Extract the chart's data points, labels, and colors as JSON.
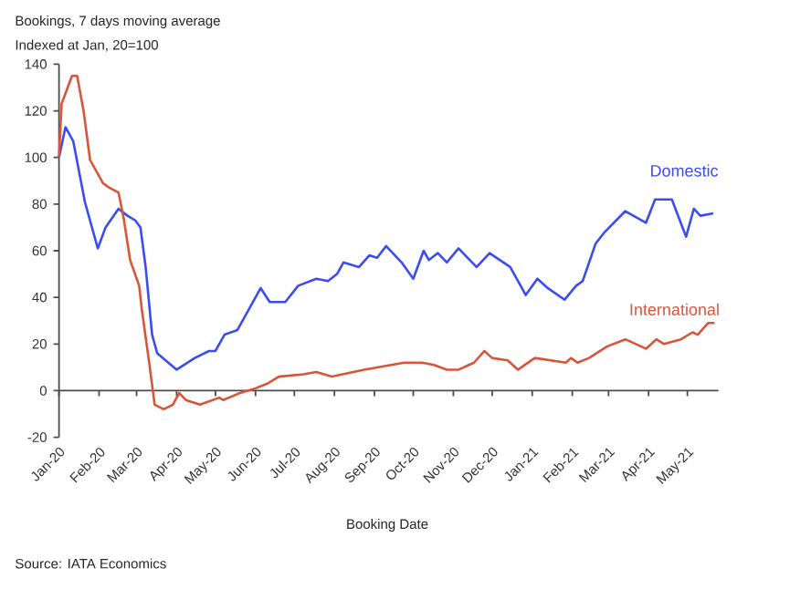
{
  "chart_data": {
    "type": "line",
    "title": "Bookings, 7 days moving average",
    "subtitle": "Indexed at Jan, 20=100",
    "xlabel": "Booking Date",
    "annotations": [
      "Source: IATA Economics"
    ],
    "x": [
      "2020-01-01",
      "2020-01-06",
      "2020-01-12",
      "2020-01-21",
      "2020-01-31",
      "2020-02-06",
      "2020-02-16",
      "2020-02-23",
      "2020-02-29",
      "2020-03-04",
      "2020-03-08",
      "2020-03-13",
      "2020-03-17",
      "2020-04-01",
      "2020-04-15",
      "2020-04-26",
      "2020-05-01",
      "2020-05-08",
      "2020-05-18",
      "2020-05-27",
      "2020-06-05",
      "2020-06-12",
      "2020-06-24",
      "2020-07-04",
      "2020-07-18",
      "2020-07-27",
      "2020-08-03",
      "2020-08-08",
      "2020-08-20",
      "2020-08-28",
      "2020-09-03",
      "2020-09-10",
      "2020-09-22",
      "2020-10-01",
      "2020-10-09",
      "2020-10-13",
      "2020-10-20",
      "2020-10-27",
      "2020-11-05",
      "2020-11-19",
      "2020-11-29",
      "2020-12-15",
      "2020-12-27",
      "2021-01-05",
      "2021-01-13",
      "2021-01-26",
      "2021-02-04",
      "2021-02-09",
      "2021-02-19",
      "2021-02-26",
      "2021-03-14",
      "2021-03-30",
      "2021-04-06",
      "2021-04-19",
      "2021-04-30",
      "2021-05-06",
      "2021-05-11",
      "2021-05-21"
    ],
    "series": [
      {
        "name": "Domestic",
        "color": "#3b4cf0",
        "values": [
          100,
          113,
          107,
          81,
          61,
          70,
          78,
          75,
          73,
          70,
          53,
          24,
          16,
          9,
          14,
          17,
          17,
          24,
          26,
          35,
          44,
          38,
          38,
          45,
          48,
          47,
          50,
          55,
          53,
          58,
          57,
          62,
          55,
          48,
          60,
          56,
          59,
          55,
          61,
          53,
          59,
          53,
          41,
          48,
          44,
          39,
          45,
          47,
          63,
          68,
          77,
          72,
          82,
          82,
          66,
          78,
          75,
          76
        ]
      },
      {
        "name": "International",
        "color": "#d9553a",
        "x": [
          "2020-01-01",
          "2020-01-03",
          "2020-01-11",
          "2020-01-15",
          "2020-01-20",
          "2020-01-25",
          "2020-02-04",
          "2020-02-09",
          "2020-02-16",
          "2020-02-20",
          "2020-02-25",
          "2020-03-03",
          "2020-03-05",
          "2020-03-11",
          "2020-03-15",
          "2020-03-22",
          "2020-03-29",
          "2020-04-03",
          "2020-04-08",
          "2020-04-19",
          "2020-05-04",
          "2020-05-07",
          "2020-05-20",
          "2020-06-01",
          "2020-06-10",
          "2020-06-19",
          "2020-07-08",
          "2020-07-18",
          "2020-07-30",
          "2020-08-24",
          "2020-09-24",
          "2020-10-08",
          "2020-10-17",
          "2020-10-27",
          "2020-11-05",
          "2020-11-17",
          "2020-11-25",
          "2020-12-01",
          "2020-12-13",
          "2020-12-21",
          "2021-01-03",
          "2021-01-27",
          "2021-01-31",
          "2021-02-05",
          "2021-02-14",
          "2021-02-28",
          "2021-03-14",
          "2021-03-30",
          "2021-04-07",
          "2021-04-13",
          "2021-04-26",
          "2021-05-05",
          "2021-05-09",
          "2021-05-17",
          "2021-05-22"
        ],
        "values": [
          100,
          123,
          135,
          135,
          120,
          99,
          89,
          87,
          85,
          74,
          56,
          45,
          35,
          11,
          -6,
          -8,
          -6,
          -1,
          -4,
          -6,
          -3,
          -4,
          -1,
          1,
          3,
          6,
          7,
          8,
          6,
          9,
          12,
          12,
          11,
          9,
          9,
          12,
          17,
          14,
          13,
          9,
          14,
          12,
          14,
          12,
          14,
          19,
          22,
          18,
          22,
          20,
          22,
          25,
          24,
          29,
          29
        ]
      }
    ],
    "xlim": [
      "2020-01-01",
      "2021-05-25"
    ],
    "xticks": [
      {
        "value": "2020-01-01",
        "label": "Jan-20"
      },
      {
        "value": "2020-02-01",
        "label": "Feb-20"
      },
      {
        "value": "2020-03-01",
        "label": "Mar-20"
      },
      {
        "value": "2020-04-01",
        "label": "Apr-20"
      },
      {
        "value": "2020-05-01",
        "label": "May-20"
      },
      {
        "value": "2020-06-01",
        "label": "Jun-20"
      },
      {
        "value": "2020-07-01",
        "label": "Jul-20"
      },
      {
        "value": "2020-08-01",
        "label": "Aug-20"
      },
      {
        "value": "2020-09-01",
        "label": "Sep-20"
      },
      {
        "value": "2020-10-01",
        "label": "Oct-20"
      },
      {
        "value": "2020-11-01",
        "label": "Nov-20"
      },
      {
        "value": "2020-12-01",
        "label": "Dec-20"
      },
      {
        "value": "2021-01-01",
        "label": "Jan-21"
      },
      {
        "value": "2021-02-01",
        "label": "Feb-21"
      },
      {
        "value": "2021-03-01",
        "label": "Mar-21"
      },
      {
        "value": "2021-04-01",
        "label": "Apr-21"
      },
      {
        "value": "2021-05-01",
        "label": "May-21"
      }
    ],
    "ylim": [
      -20,
      140
    ],
    "yticks": [
      -20,
      0,
      20,
      40,
      60,
      80,
      100,
      120,
      140
    ]
  }
}
